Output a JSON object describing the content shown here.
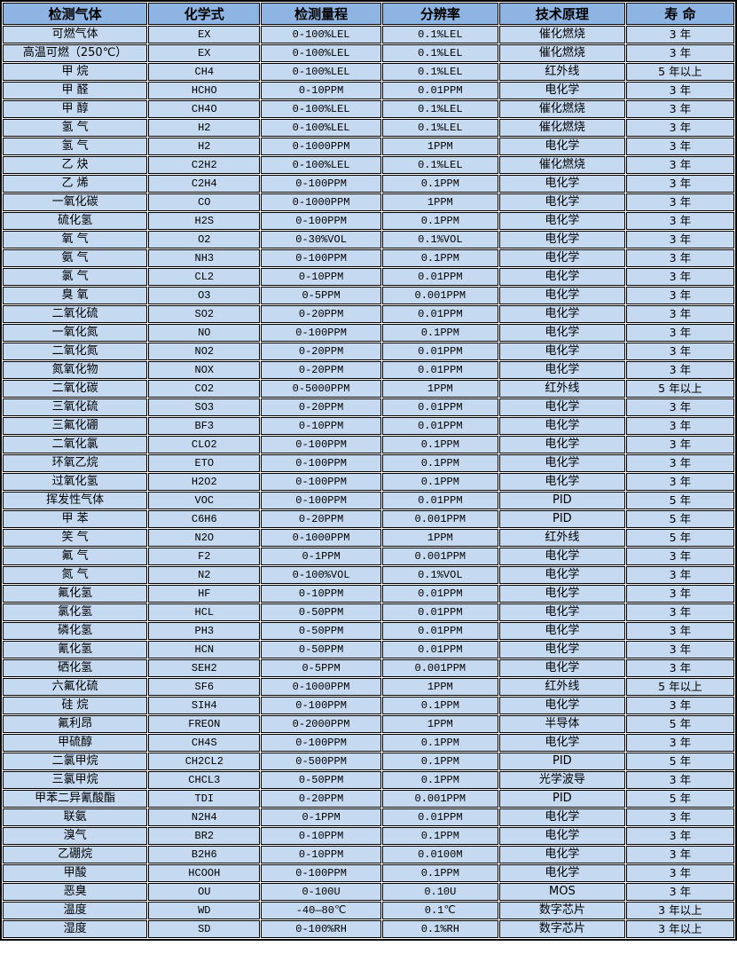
{
  "table": {
    "colors": {
      "header_bg": "#8db4e2",
      "row_bg": "#c5d9f1",
      "border": "#000000",
      "cell_gap": "#ffffff",
      "text": "#000000"
    },
    "columns": [
      "检测气体",
      "化学式",
      "检测量程",
      "分辨率",
      "技术原理",
      "寿 命"
    ],
    "rows": [
      [
        "可燃气体",
        "EX",
        "0-100%LEL",
        "0.1%LEL",
        "催化燃烧",
        "3 年"
      ],
      [
        "高温可燃（250℃）",
        "EX",
        "0-100%LEL",
        "0.1%LEL",
        "催化燃烧",
        "3 年"
      ],
      [
        "甲 烷",
        "CH4",
        "0-100%LEL",
        "0.1%LEL",
        "红外线",
        "5 年以上"
      ],
      [
        "甲 醛",
        "HCHO",
        "0-10PPM",
        "0.01PPM",
        "电化学",
        "3 年"
      ],
      [
        "甲 醇",
        "CH4O",
        "0-100%LEL",
        "0.1%LEL",
        "催化燃烧",
        "3 年"
      ],
      [
        "氢 气",
        "H2",
        "0-100%LEL",
        "0.1%LEL",
        "催化燃烧",
        "3 年"
      ],
      [
        "氢 气",
        "H2",
        "0-1000PPM",
        "1PPM",
        "电化学",
        "3 年"
      ],
      [
        "乙 炔",
        "C2H2",
        "0-100%LEL",
        "0.1%LEL",
        "催化燃烧",
        "3 年"
      ],
      [
        "乙 烯",
        "C2H4",
        "0-100PPM",
        "0.1PPM",
        "电化学",
        "3 年"
      ],
      [
        "一氧化碳",
        "CO",
        "0-1000PPM",
        "1PPM",
        "电化学",
        "3 年"
      ],
      [
        "硫化氢",
        "H2S",
        "0-100PPM",
        "0.1PPM",
        "电化学",
        "3 年"
      ],
      [
        "氧 气",
        "O2",
        "0-30%VOL",
        "0.1%VOL",
        "电化学",
        "3 年"
      ],
      [
        "氨 气",
        "NH3",
        "0-100PPM",
        "0.1PPM",
        "电化学",
        "3 年"
      ],
      [
        "氯 气",
        "CL2",
        "0-10PPM",
        "0.01PPM",
        "电化学",
        "3 年"
      ],
      [
        "臭 氧",
        "O3",
        "0-5PPM",
        "0.001PPM",
        "电化学",
        "3 年"
      ],
      [
        "二氧化硫",
        "SO2",
        "0-20PPM",
        "0.01PPM",
        "电化学",
        "3 年"
      ],
      [
        "一氧化氮",
        "NO",
        "0-100PPM",
        "0.1PPM",
        "电化学",
        "3 年"
      ],
      [
        "二氧化氮",
        "NO2",
        "0-20PPM",
        "0.01PPM",
        "电化学",
        "3 年"
      ],
      [
        "氮氧化物",
        "NOX",
        "0-20PPM",
        "0.01PPM",
        "电化学",
        "3 年"
      ],
      [
        "二氧化碳",
        "CO2",
        "0-5000PPM",
        "1PPM",
        "红外线",
        "5 年以上"
      ],
      [
        "三氧化硫",
        "SO3",
        "0-20PPM",
        "0.01PPM",
        "电化学",
        "3 年"
      ],
      [
        "三氟化硼",
        "BF3",
        "0-10PPM",
        "0.01PPM",
        "电化学",
        "3 年"
      ],
      [
        "二氧化氯",
        "CLO2",
        "0-100PPM",
        "0.1PPM",
        "电化学",
        "3 年"
      ],
      [
        "环氧乙烷",
        "ETO",
        "0-100PPM",
        "0.1PPM",
        "电化学",
        "3 年"
      ],
      [
        "过氧化氢",
        "H2O2",
        "0-100PPM",
        "0.1PPM",
        "电化学",
        "3 年"
      ],
      [
        "挥发性气体",
        "VOC",
        "0-100PPM",
        "0.01PPM",
        "PID",
        "5 年"
      ],
      [
        "甲 苯",
        "C6H6",
        "0-20PPM",
        "0.001PPM",
        "PID",
        "5 年"
      ],
      [
        "笑 气",
        "N2O",
        "0-1000PPM",
        "1PPM",
        "红外线",
        "5 年"
      ],
      [
        "氟 气",
        "F2",
        "0-1PPM",
        "0.001PPM",
        "电化学",
        "3 年"
      ],
      [
        "氮 气",
        "N2",
        "0-100%VOL",
        "0.1%VOL",
        "电化学",
        "3 年"
      ],
      [
        "氟化氢",
        "HF",
        "0-10PPM",
        "0.01PPM",
        "电化学",
        "3 年"
      ],
      [
        "氯化氢",
        "HCL",
        "0-50PPM",
        "0.01PPM",
        "电化学",
        "3 年"
      ],
      [
        "磷化氢",
        "PH3",
        "0-50PPM",
        "0.01PPM",
        "电化学",
        "3 年"
      ],
      [
        "氰化氢",
        "HCN",
        "0-50PPM",
        "0.01PPM",
        "电化学",
        "3 年"
      ],
      [
        "硒化氢",
        "SEH2",
        "0-5PPM",
        "0.001PPM",
        "电化学",
        "3 年"
      ],
      [
        "六氟化硫",
        "SF6",
        "0-1000PPM",
        "1PPM",
        "红外线",
        "5 年以上"
      ],
      [
        "硅 烷",
        "SIH4",
        "0-100PPM",
        "0.1PPM",
        "电化学",
        "3 年"
      ],
      [
        "氟利昂",
        "FREON",
        "0-2000PPM",
        "1PPM",
        "半导体",
        "5 年"
      ],
      [
        "甲硫醇",
        "CH4S",
        "0-100PPM",
        "0.1PPM",
        "电化学",
        "3 年"
      ],
      [
        "二氯甲烷",
        "CH2CL2",
        "0-500PPM",
        "0.1PPM",
        "PID",
        "5 年"
      ],
      [
        "三氯甲烷",
        "CHCL3",
        "0-50PPM",
        "0.1PPM",
        "光学波导",
        "3 年"
      ],
      [
        "甲苯二异氰酸酯",
        "TDI",
        "0-20PPM",
        "0.001PPM",
        "PID",
        "5 年"
      ],
      [
        "联氨",
        "N2H4",
        "0-1PPM",
        "0.01PPM",
        "电化学",
        "3 年"
      ],
      [
        "溴气",
        "BR2",
        "0-10PPM",
        "0.1PPM",
        "电化学",
        "3 年"
      ],
      [
        "乙硼烷",
        "B2H6",
        "0-10PPM",
        "0.0100M",
        "电化学",
        "3 年"
      ],
      [
        "甲酸",
        "HCOOH",
        "0-100PPM",
        "0.1PPM",
        "电化学",
        "3 年"
      ],
      [
        "恶臭",
        "OU",
        "0-100U",
        "0.10U",
        "MOS",
        "3 年"
      ],
      [
        "温度",
        "WD",
        "-40—80℃",
        "0.1℃",
        "数字芯片",
        "3 年以上"
      ],
      [
        "湿度",
        "SD",
        "0-100%RH",
        "0.1%RH",
        "数字芯片",
        "3 年以上"
      ]
    ]
  }
}
